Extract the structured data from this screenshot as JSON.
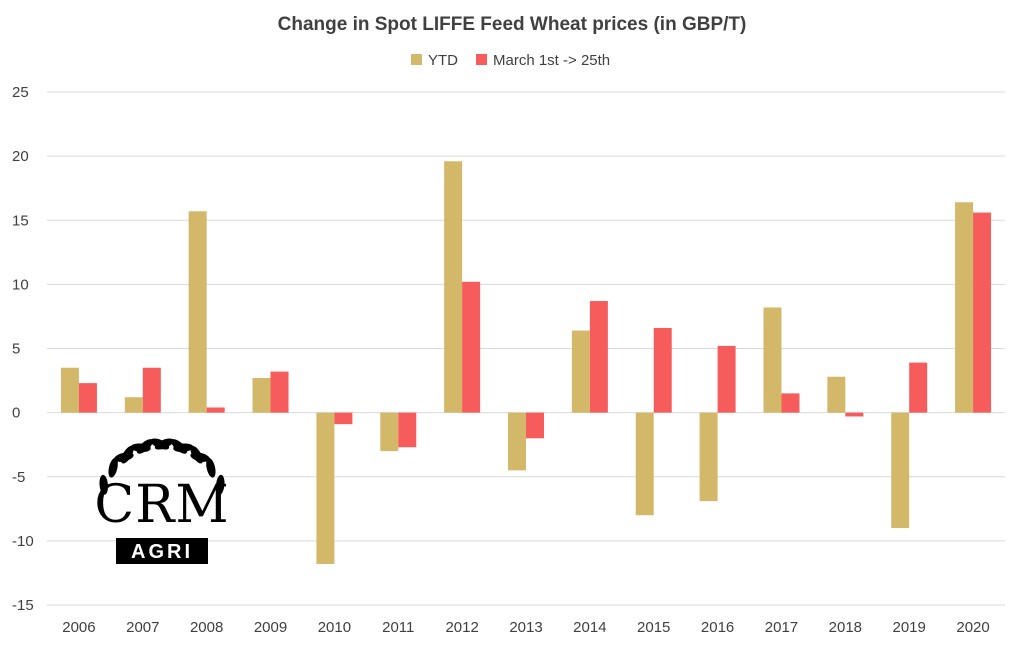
{
  "chart_data": {
    "type": "bar",
    "title": "Change in Spot LIFFE Feed Wheat prices (in GBP/T)",
    "xlabel": "",
    "ylabel": "",
    "ylim": [
      -15,
      25
    ],
    "y_ticks": [
      25,
      20,
      15,
      10,
      5,
      0,
      -5,
      -10,
      -15
    ],
    "y_tick_labels": [
      "25",
      "20",
      "15",
      "10",
      "5",
      "0",
      "-5",
      "-10",
      "-15"
    ],
    "grid": true,
    "legend_position": "top-center",
    "categories": [
      "2006",
      "2007",
      "2008",
      "2009",
      "2010",
      "2011",
      "2012",
      "2013",
      "2014",
      "2015",
      "2016",
      "2017",
      "2018",
      "2019",
      "2020"
    ],
    "series": [
      {
        "name": "YTD",
        "color": "#d4b86a",
        "values": [
          3.5,
          1.2,
          15.7,
          2.7,
          -11.8,
          -3.0,
          19.6,
          -4.5,
          6.4,
          -8.0,
          -6.9,
          8.2,
          2.8,
          -9.0,
          16.4
        ]
      },
      {
        "name": "March 1st -> 25th",
        "color": "#f75c5c",
        "values": [
          2.3,
          3.5,
          0.4,
          3.2,
          -0.9,
          -2.7,
          10.2,
          -2.0,
          8.7,
          6.6,
          5.2,
          1.5,
          -0.3,
          3.9,
          15.6
        ]
      }
    ]
  },
  "logo": {
    "main_text": "CRM",
    "sub_text": "AGRI"
  }
}
